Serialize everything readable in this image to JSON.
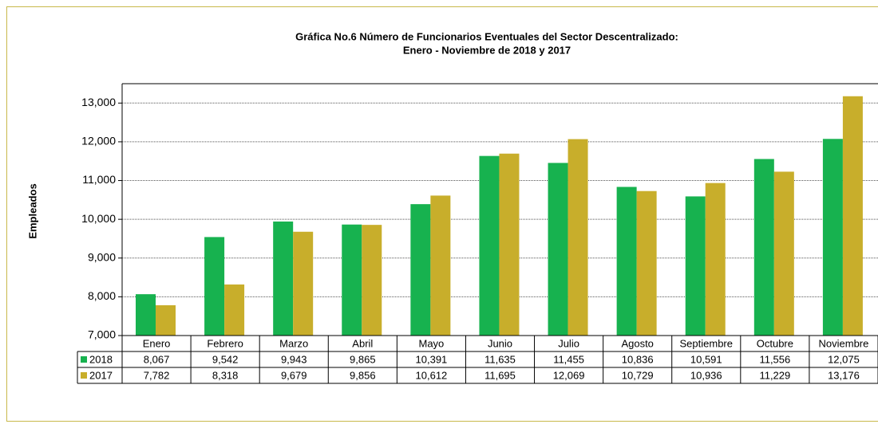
{
  "chart_data": {
    "type": "bar",
    "title": "Gráfica No.6 Número de Funcionarios Eventuales del Sector Descentralizado:",
    "subtitle": "Enero - Noviembre de 2018 y 2017",
    "y_label": "Empleados",
    "categories": [
      "Enero",
      "Febrero",
      "Marzo",
      "Abril",
      "Mayo",
      "Junio",
      "Julio",
      "Agosto",
      "Septiembre",
      "Octubre",
      "Noviembre"
    ],
    "series": [
      {
        "name": "2018",
        "color": "#17b24f",
        "values": [
          8067,
          9542,
          9943,
          9865,
          10391,
          11635,
          11455,
          10836,
          10591,
          11556,
          12075
        ],
        "value_labels": [
          "8,067",
          "9,542",
          "9,943",
          "9,865",
          "10,391",
          "11,635",
          "11,455",
          "10,836",
          "10,591",
          "11,556",
          "12,075"
        ]
      },
      {
        "name": "2017",
        "color": "#c8ae2b",
        "values": [
          7782,
          8318,
          9679,
          9856,
          10612,
          11695,
          12069,
          10729,
          10936,
          11229,
          13176
        ],
        "value_labels": [
          "7,782",
          "8,318",
          "9,679",
          "9,856",
          "10,612",
          "11,695",
          "12,069",
          "10,729",
          "10,936",
          "11,229",
          "13,176"
        ]
      }
    ],
    "ylim": [
      7000,
      13500
    ],
    "yticks": [
      {
        "value": 7000,
        "label": "7,000"
      },
      {
        "value": 8000,
        "label": "8,000"
      },
      {
        "value": 9000,
        "label": "9,000"
      },
      {
        "value": 10000,
        "label": "10,000"
      },
      {
        "value": 11000,
        "label": "11,000"
      },
      {
        "value": 12000,
        "label": "12,000"
      },
      {
        "value": 13000,
        "label": "13,000"
      }
    ],
    "grid": true
  }
}
